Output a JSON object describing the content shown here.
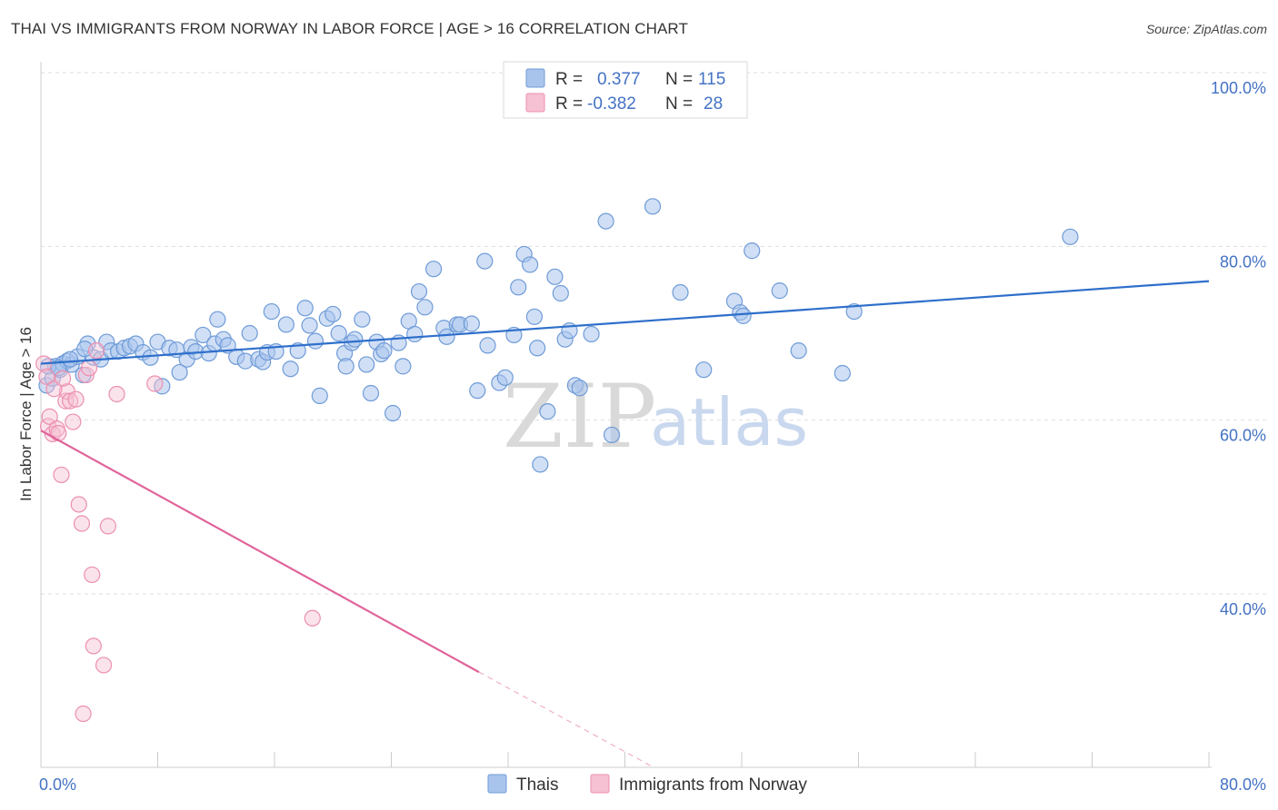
{
  "title": "THAI VS IMMIGRANTS FROM NORWAY IN LABOR FORCE | AGE > 16 CORRELATION CHART",
  "source": "Source: ZipAtlas.com",
  "colors": {
    "blue_fill": "#a9c4ec",
    "blue_stroke": "#6f9bd8",
    "blue_line": "#2e6fcb",
    "pink_fill": "#f6c1d2",
    "pink_stroke": "#ec8fb0",
    "pink_line": "#e0649a",
    "tick": "#4472c4"
  },
  "legend": {
    "rows": [
      {
        "r_label": "R =",
        "r_value": "0.377",
        "n_label": "N =",
        "n_value": "115"
      },
      {
        "r_label": "R =",
        "r_value": "-0.382",
        "n_label": "N =",
        "n_value": "28"
      }
    ]
  },
  "watermark": {
    "zip": "ZIP",
    "atlas": "atlas"
  },
  "chart_data": {
    "type": "scatter",
    "xlabel": "",
    "ylabel": "In Labor Force | Age > 16",
    "xlim": [
      0,
      80
    ],
    "ylim": [
      20,
      104
    ],
    "x_tick_labels": [
      {
        "value": 0,
        "label": "0.0%"
      },
      {
        "value": 80,
        "label": "80.0%"
      }
    ],
    "y_tick_labels": [
      {
        "value": 100,
        "label": "100.0%"
      },
      {
        "value": 80,
        "label": "80.0%"
      },
      {
        "value": 60,
        "label": "60.0%"
      },
      {
        "value": 40,
        "label": "40.0%"
      }
    ],
    "grid": true,
    "legend_position": "top-center",
    "series": [
      {
        "name": "Thais",
        "color": "blue",
        "trend": {
          "x0": 0,
          "y0": 66.5,
          "x1": 80,
          "y1": 76.0
        },
        "points": [
          [
            0.4,
            64.0
          ],
          [
            0.8,
            64.8
          ],
          [
            1.0,
            66.2
          ],
          [
            1.3,
            65.8
          ],
          [
            1.5,
            66.5
          ],
          [
            1.8,
            66.8
          ],
          [
            2.1,
            66.4
          ],
          [
            2.5,
            67.3
          ],
          [
            2.9,
            65.2
          ],
          [
            3.2,
            68.8
          ],
          [
            3.6,
            67.2
          ],
          [
            4.1,
            67.0
          ],
          [
            4.5,
            69.0
          ],
          [
            4.8,
            68.0
          ],
          [
            5.3,
            67.9
          ],
          [
            5.7,
            68.3
          ],
          [
            6.1,
            68.5
          ],
          [
            6.5,
            68.8
          ],
          [
            7.0,
            67.8
          ],
          [
            7.5,
            67.2
          ],
          [
            8.0,
            69.0
          ],
          [
            8.3,
            63.9
          ],
          [
            8.8,
            68.3
          ],
          [
            9.3,
            68.1
          ],
          [
            9.5,
            65.5
          ],
          [
            10.0,
            67.0
          ],
          [
            10.3,
            68.4
          ],
          [
            10.6,
            67.9
          ],
          [
            11.1,
            69.8
          ],
          [
            11.5,
            67.7
          ],
          [
            11.9,
            68.8
          ],
          [
            12.1,
            71.6
          ],
          [
            12.5,
            69.3
          ],
          [
            12.8,
            68.6
          ],
          [
            13.4,
            67.3
          ],
          [
            14.0,
            66.8
          ],
          [
            14.3,
            70.0
          ],
          [
            14.9,
            67.0
          ],
          [
            15.2,
            66.7
          ],
          [
            15.5,
            67.8
          ],
          [
            15.8,
            72.5
          ],
          [
            16.1,
            67.9
          ],
          [
            16.8,
            71.0
          ],
          [
            17.1,
            65.9
          ],
          [
            17.6,
            68.0
          ],
          [
            18.1,
            72.9
          ],
          [
            18.4,
            70.9
          ],
          [
            18.8,
            69.1
          ],
          [
            19.1,
            62.8
          ],
          [
            19.6,
            71.7
          ],
          [
            20.0,
            72.2
          ],
          [
            20.4,
            70.0
          ],
          [
            20.8,
            67.7
          ],
          [
            20.9,
            66.2
          ],
          [
            21.3,
            68.9
          ],
          [
            21.5,
            69.3
          ],
          [
            22.0,
            71.6
          ],
          [
            22.3,
            66.4
          ],
          [
            22.6,
            63.1
          ],
          [
            23.0,
            69.0
          ],
          [
            23.3,
            67.6
          ],
          [
            23.5,
            68.0
          ],
          [
            24.1,
            60.8
          ],
          [
            24.5,
            68.9
          ],
          [
            24.8,
            66.2
          ],
          [
            25.2,
            71.4
          ],
          [
            25.6,
            69.9
          ],
          [
            25.9,
            74.8
          ],
          [
            26.3,
            73.0
          ],
          [
            26.9,
            77.4
          ],
          [
            27.6,
            70.6
          ],
          [
            27.8,
            69.6
          ],
          [
            28.5,
            71.0
          ],
          [
            28.7,
            71.0
          ],
          [
            29.5,
            71.1
          ],
          [
            29.9,
            63.4
          ],
          [
            30.4,
            78.3
          ],
          [
            30.6,
            68.6
          ],
          [
            31.4,
            64.3
          ],
          [
            31.8,
            64.9
          ],
          [
            32.4,
            69.8
          ],
          [
            32.7,
            75.3
          ],
          [
            33.1,
            79.1
          ],
          [
            33.5,
            77.9
          ],
          [
            33.8,
            71.9
          ],
          [
            34.0,
            68.3
          ],
          [
            34.7,
            61.0
          ],
          [
            34.2,
            54.9
          ],
          [
            35.2,
            76.5
          ],
          [
            35.6,
            74.6
          ],
          [
            35.9,
            69.3
          ],
          [
            36.2,
            70.3
          ],
          [
            36.6,
            64.0
          ],
          [
            36.9,
            63.7
          ],
          [
            37.7,
            69.9
          ],
          [
            38.7,
            82.9
          ],
          [
            39.1,
            58.3
          ],
          [
            41.9,
            84.6
          ],
          [
            43.8,
            74.7
          ],
          [
            45.4,
            65.8
          ],
          [
            47.5,
            73.7
          ],
          [
            47.9,
            72.4
          ],
          [
            48.1,
            72.0
          ],
          [
            48.7,
            79.5
          ],
          [
            50.6,
            74.9
          ],
          [
            51.9,
            68.0
          ],
          [
            54.9,
            65.4
          ],
          [
            55.7,
            72.5
          ],
          [
            70.5,
            81.1
          ],
          [
            0.5,
            66.2
          ],
          [
            1.2,
            66.0
          ],
          [
            2.0,
            67.0
          ],
          [
            3.0,
            68.2
          ]
        ]
      },
      {
        "name": "Immigrants from Norway",
        "color": "pink",
        "trend": {
          "x0": 0,
          "y0": 58.8,
          "x1": 30,
          "y1": 31.0,
          "dash_x1": 42,
          "dash_y1": 20
        },
        "points": [
          [
            0.2,
            66.5
          ],
          [
            0.4,
            65.0
          ],
          [
            0.5,
            59.3
          ],
          [
            0.6,
            60.4
          ],
          [
            0.8,
            58.4
          ],
          [
            1.1,
            59.0
          ],
          [
            1.2,
            58.5
          ],
          [
            1.4,
            53.7
          ],
          [
            1.7,
            62.2
          ],
          [
            1.8,
            63.3
          ],
          [
            2.0,
            62.2
          ],
          [
            2.2,
            59.8
          ],
          [
            2.4,
            62.4
          ],
          [
            2.6,
            50.3
          ],
          [
            2.8,
            48.1
          ],
          [
            3.1,
            65.2
          ],
          [
            3.3,
            66.0
          ],
          [
            3.5,
            42.2
          ],
          [
            3.6,
            34.0
          ],
          [
            3.8,
            68.0
          ],
          [
            4.3,
            31.8
          ],
          [
            4.6,
            47.8
          ],
          [
            5.2,
            63.0
          ],
          [
            7.8,
            64.2
          ],
          [
            2.9,
            26.2
          ],
          [
            18.6,
            37.2
          ],
          [
            0.9,
            63.6
          ],
          [
            1.5,
            64.8
          ]
        ]
      }
    ]
  }
}
